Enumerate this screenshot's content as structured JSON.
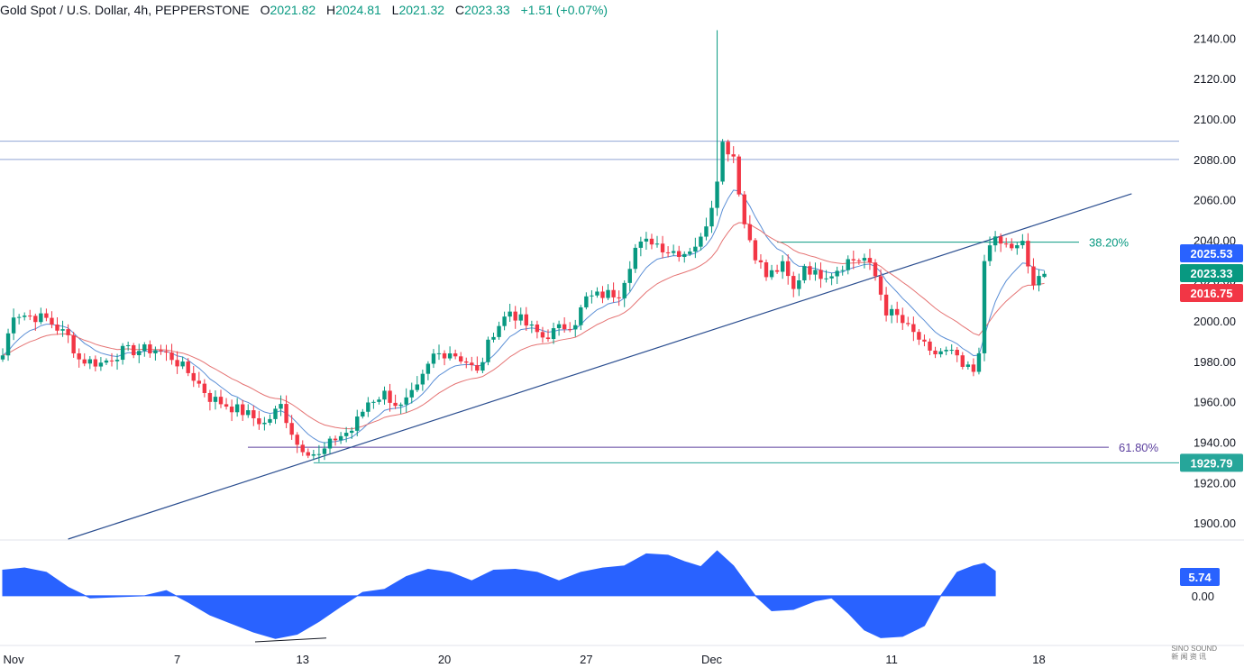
{
  "header": {
    "symbol": "Gold Spot / U.S. Dollar, 4h, PEPPERSTONE",
    "open_label": "O",
    "open": "2021.82",
    "high_label": "H",
    "high": "2024.81",
    "low_label": "L",
    "low": "2021.32",
    "close_label": "C",
    "close": "2023.33",
    "change": "+1.51 (+0.07%)"
  },
  "colors": {
    "up": "#089981",
    "down": "#f23645",
    "ema_fast": "#5b8fd6",
    "ema_slow": "#e57373",
    "trendline": "#2a4d8f",
    "fib_382": "#089981",
    "fib_618": "#5b3f9e",
    "oscillator": "#2962ff",
    "badge_blue": "#2962ff",
    "badge_green": "#089981",
    "badge_red": "#f23645",
    "support_line": "#26a69a"
  },
  "watermark": {
    "line1": "SINO SOUND",
    "line2": "新 闻 资 讯"
  },
  "chart_data": [
    {
      "type": "candlestick",
      "y_ticks": [
        "2140.00",
        "2120.00",
        "2100.00",
        "2080.00",
        "2060.00",
        "2040.00",
        "2020.00",
        "2000.00",
        "1980.00",
        "1960.00",
        "1940.00",
        "1920.00",
        "1900.00"
      ],
      "y_tick_values": [
        2140,
        2120,
        2100,
        2080,
        2060,
        2040,
        2020,
        2000,
        1980,
        1960,
        1940,
        1920,
        1900
      ],
      "ylim": [
        1892,
        2150
      ],
      "x_labels": [
        "Nov",
        "7",
        "13",
        "20",
        "27",
        "Dec",
        "11",
        "18"
      ],
      "x_label_index": [
        2,
        32,
        55,
        81,
        107,
        130,
        163,
        190
      ],
      "candle_count": 192,
      "close_path": [
        [
          0,
          1983
        ],
        [
          2,
          2004
        ],
        [
          8,
          2001
        ],
        [
          12,
          1992
        ],
        [
          14,
          1981
        ],
        [
          18,
          1979
        ],
        [
          22,
          1985
        ],
        [
          28,
          1986
        ],
        [
          31,
          1982
        ],
        [
          35,
          1972
        ],
        [
          38,
          1962
        ],
        [
          44,
          1955
        ],
        [
          48,
          1949
        ],
        [
          51,
          1958
        ],
        [
          54,
          1939
        ],
        [
          58,
          1933
        ],
        [
          61,
          1942
        ],
        [
          64,
          1946
        ],
        [
          67,
          1960
        ],
        [
          70,
          1964
        ],
        [
          73,
          1957
        ],
        [
          76,
          1966
        ],
        [
          79,
          1983
        ],
        [
          82,
          1985
        ],
        [
          85,
          1980
        ],
        [
          87,
          1974
        ],
        [
          90,
          1995
        ],
        [
          93,
          2005
        ],
        [
          96,
          1998
        ],
        [
          99,
          1992
        ],
        [
          102,
          1996
        ],
        [
          105,
          2000
        ],
        [
          107,
          2011
        ],
        [
          110,
          2013
        ],
        [
          113,
          2014
        ],
        [
          116,
          2036
        ],
        [
          119,
          2040
        ],
        [
          122,
          2035
        ],
        [
          125,
          2034
        ],
        [
          128,
          2040
        ],
        [
          130,
          2058
        ],
        [
          131,
          2072
        ],
        [
          132,
          2088
        ],
        [
          134,
          2082
        ],
        [
          136,
          2048
        ],
        [
          138,
          2033
        ],
        [
          140,
          2022
        ],
        [
          143,
          2027
        ],
        [
          145,
          2015
        ],
        [
          147,
          2028
        ],
        [
          149,
          2023
        ],
        [
          152,
          2024
        ],
        [
          155,
          2030
        ],
        [
          158,
          2031
        ],
        [
          160,
          2022
        ],
        [
          162,
          2005
        ],
        [
          164,
          2002
        ],
        [
          166,
          1996
        ],
        [
          168,
          1991
        ],
        [
          170,
          1983
        ],
        [
          172,
          1985
        ],
        [
          174,
          1984
        ],
        [
          176,
          1977
        ],
        [
          178,
          1974
        ],
        [
          179,
          1982
        ],
        [
          180,
          2030
        ],
        [
          181,
          2040
        ],
        [
          183,
          2038
        ],
        [
          186,
          2036
        ],
        [
          187,
          2038
        ],
        [
          188,
          2027
        ],
        [
          189,
          2018
        ],
        [
          190,
          2020
        ],
        [
          191,
          2023.33
        ]
      ],
      "spike": {
        "index": 131,
        "high": 2144
      },
      "current_badge": "2023.33",
      "upper_badge": "2025.53",
      "lower_badge": "2016.75",
      "support_badge": "1929.79",
      "horizontal_lines": [
        2089,
        2080
      ],
      "support_level": 1929.79,
      "fib_levels": [
        {
          "label": "38.20%",
          "value": 2039
        },
        {
          "label": "61.80%",
          "value": 1937.5
        }
      ],
      "trendline": {
        "from": [
          12,
          1892
        ],
        "to": [
          207,
          2063
        ]
      }
    },
    {
      "type": "area",
      "name": "oscillator",
      "y_ticks": [
        "0.00"
      ],
      "current_badge": "5.74",
      "ylim": [
        -11,
        12
      ],
      "values": [
        [
          0,
          6
        ],
        [
          4,
          6.5
        ],
        [
          8,
          5.5
        ],
        [
          12,
          2
        ],
        [
          16,
          -0.5
        ],
        [
          20,
          -0.3
        ],
        [
          26,
          0
        ],
        [
          30,
          1.2
        ],
        [
          34,
          -1.5
        ],
        [
          38,
          -4.5
        ],
        [
          42,
          -6.5
        ],
        [
          46,
          -8.5
        ],
        [
          50,
          -10
        ],
        [
          54,
          -9
        ],
        [
          58,
          -6
        ],
        [
          62,
          -2.5
        ],
        [
          66,
          0.8
        ],
        [
          70,
          1.5
        ],
        [
          74,
          4.5
        ],
        [
          78,
          6.2
        ],
        [
          82,
          5.5
        ],
        [
          86,
          3.5
        ],
        [
          90,
          6
        ],
        [
          94,
          6.2
        ],
        [
          98,
          5.5
        ],
        [
          102,
          3.5
        ],
        [
          106,
          5.5
        ],
        [
          110,
          6.5
        ],
        [
          114,
          7
        ],
        [
          118,
          9.8
        ],
        [
          122,
          9.5
        ],
        [
          125,
          8
        ],
        [
          128,
          6.8
        ],
        [
          131,
          10.5
        ],
        [
          134,
          7
        ],
        [
          138,
          0
        ],
        [
          141,
          -3.5
        ],
        [
          145,
          -3.2
        ],
        [
          149,
          -1.2
        ],
        [
          152,
          -0.5
        ],
        [
          155,
          -4
        ],
        [
          158,
          -8
        ],
        [
          161,
          -9.8
        ],
        [
          165,
          -9.5
        ],
        [
          169,
          -7
        ],
        [
          172,
          0
        ],
        [
          175,
          5.5
        ],
        [
          178,
          7
        ],
        [
          180,
          7.6
        ],
        [
          182,
          5.74
        ]
      ]
    }
  ]
}
